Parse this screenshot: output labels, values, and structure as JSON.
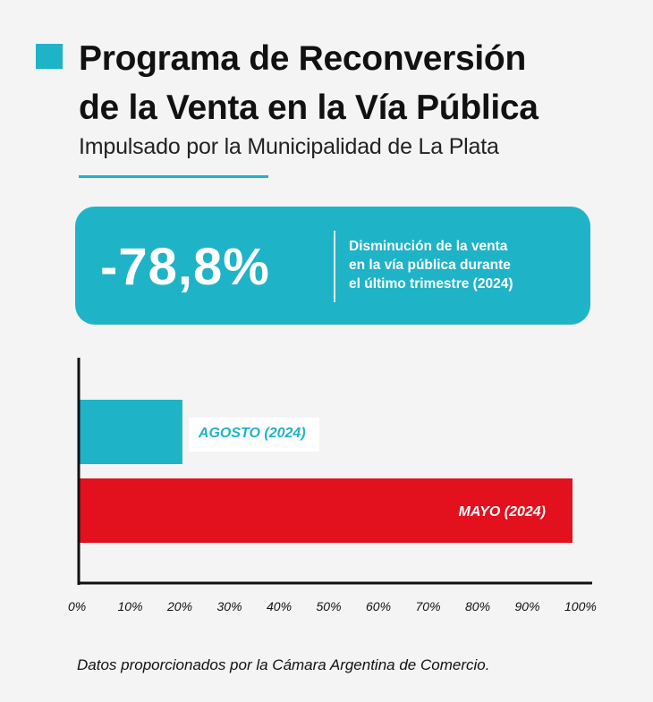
{
  "header": {
    "title_line1": "Programa de Reconversión",
    "title_line2": "de la Venta en la Vía Pública",
    "subtitle": "Impulsado por la Municipalidad de La Plata"
  },
  "callout": {
    "value": "-78,8%",
    "description_lines": [
      "Disminución de la venta",
      "en la vía pública durante",
      "el último trimestre (2024)"
    ]
  },
  "colors": {
    "accent": "#1fb3c7",
    "bar_agosto": "#1fb3c7",
    "bar_mayo": "#e3101e",
    "text": "#111111",
    "background": "#f4f4f4"
  },
  "chart_data": {
    "type": "bar",
    "orientation": "horizontal",
    "categories": [
      "AGOSTO (2024)",
      "MAYO (2024)"
    ],
    "values": [
      21,
      100
    ],
    "xlim": [
      0,
      100
    ],
    "xticks": [
      "0%",
      "10%",
      "20%",
      "30%",
      "40%",
      "50%",
      "60%",
      "70%",
      "80%",
      "90%",
      "100%"
    ],
    "grid": false,
    "legend": "none"
  },
  "footer": {
    "source": "Datos proporcionados por la Cámara Argentina de Comercio."
  }
}
